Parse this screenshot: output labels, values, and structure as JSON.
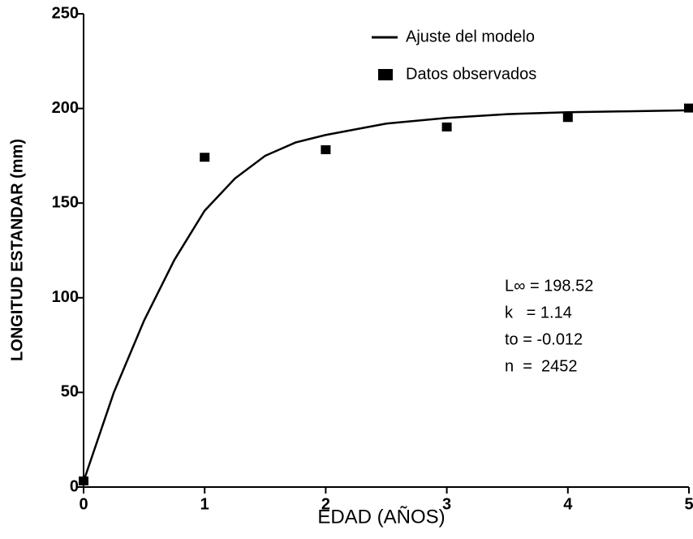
{
  "chart_data": {
    "type": "line",
    "xlabel": "EDAD (AÑOS)",
    "ylabel": "LONGITUD ESTANDAR (mm)",
    "xlim": [
      0,
      5
    ],
    "xticks": [
      0,
      1,
      2,
      3,
      4,
      5
    ],
    "ylim": [
      0,
      250
    ],
    "yticks": [
      0,
      50,
      100,
      150,
      200,
      250
    ],
    "series": [
      {
        "name": "Ajuste del modelo",
        "kind": "line",
        "color": "#000000",
        "x": [
          0,
          0.25,
          0.5,
          0.75,
          1,
          1.25,
          1.5,
          1.75,
          2,
          2.5,
          3,
          3.5,
          4,
          4.5,
          5
        ],
        "values": [
          3,
          50,
          88,
          120,
          146,
          163,
          175,
          182,
          186,
          192,
          195,
          197,
          198,
          198.5,
          199
        ]
      },
      {
        "name": "Datos observados",
        "kind": "scatter",
        "color": "#000000",
        "x": [
          0,
          1,
          2,
          3,
          4,
          5
        ],
        "values": [
          3,
          174,
          178,
          190,
          195,
          200
        ]
      }
    ],
    "annotations": [
      "L∞ = 198.52",
      "k   = 1.14",
      "to = -0.012",
      "n  =  2452"
    ]
  }
}
